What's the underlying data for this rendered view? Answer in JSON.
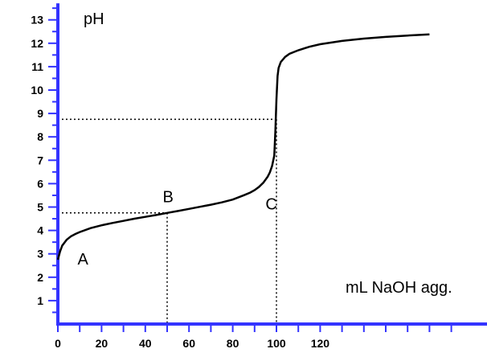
{
  "chart_data": {
    "type": "line",
    "ylabel": "pH",
    "xlabel": "mL NaOH agg.",
    "xlim": [
      0,
      180
    ],
    "ylim": [
      0,
      13.5
    ],
    "x_ticks": [
      "0",
      "20",
      "40",
      "60",
      "80",
      "100",
      "120"
    ],
    "y_ticks": [
      "1",
      "2",
      "3",
      "4",
      "5",
      "6",
      "7",
      "8",
      "9",
      "10",
      "11",
      "12",
      "13"
    ],
    "x_minor_ticks": [
      0,
      10,
      20,
      30,
      40,
      50,
      60,
      70,
      80,
      90,
      100,
      110,
      120,
      130,
      140,
      150,
      160,
      170,
      180
    ],
    "grid": false,
    "axis_color": "#3333ff",
    "line_color": "#000000",
    "series": [
      {
        "x": [
          0,
          1,
          2,
          4,
          6,
          8,
          10,
          15,
          20,
          25,
          30,
          35,
          40,
          45,
          50,
          55,
          60,
          65,
          70,
          75,
          80,
          85,
          88,
          90,
          92,
          94,
          96,
          97,
          98,
          99,
          99.5,
          100,
          100.5,
          101,
          102,
          104,
          106,
          110,
          115,
          120,
          130,
          140,
          150,
          160,
          170
        ],
        "y": [
          2.75,
          3.1,
          3.35,
          3.6,
          3.75,
          3.85,
          3.93,
          4.1,
          4.22,
          4.32,
          4.41,
          4.5,
          4.58,
          4.66,
          4.75,
          4.83,
          4.92,
          5.01,
          5.1,
          5.2,
          5.32,
          5.5,
          5.62,
          5.72,
          5.86,
          6.04,
          6.3,
          6.48,
          6.76,
          7.2,
          8.2,
          9.6,
          10.6,
          10.95,
          11.2,
          11.42,
          11.55,
          11.7,
          11.85,
          11.96,
          12.1,
          12.2,
          12.27,
          12.33,
          12.38
        ]
      }
    ],
    "reference_lines": [
      {
        "x": 50,
        "y": 4.75
      },
      {
        "x": 100,
        "y": 8.75
      }
    ],
    "annotations": [
      {
        "text": "A",
        "x": 9,
        "y": 2.55
      },
      {
        "text": "B",
        "x": 48,
        "y": 5.2
      },
      {
        "text": "C",
        "x": 95,
        "y": 4.9
      }
    ]
  }
}
